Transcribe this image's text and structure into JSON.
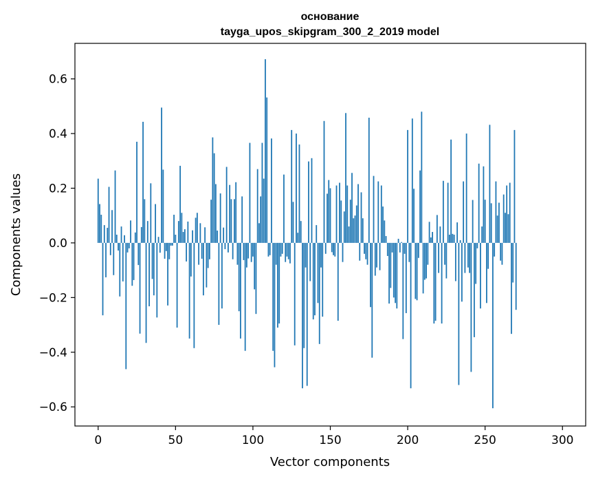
{
  "chart_data": {
    "type": "bar",
    "title": "основание",
    "subtitle": "tayga_upos_skipgram_300_2_2019 model",
    "xlabel": "Vector components",
    "ylabel": "Components values",
    "xlim": [
      -15,
      315
    ],
    "ylim": [
      -0.67,
      0.73
    ],
    "xticks": [
      0,
      50,
      100,
      150,
      200,
      250,
      300
    ],
    "xtick_labels": [
      "0",
      "50",
      "100",
      "150",
      "200",
      "250",
      "300"
    ],
    "yticks": [
      -0.6,
      -0.4,
      -0.2,
      0.0,
      0.2,
      0.4,
      0.6
    ],
    "ytick_labels": [
      "−0.6",
      "−0.4",
      "−0.2",
      "0.0",
      "0.2",
      "0.4",
      "0.6"
    ],
    "grid": false,
    "bar_color": "#1f77b4",
    "series": [
      {
        "values": [
          0.235,
          0.142,
          0.103,
          -0.265,
          0.065,
          -0.126,
          0.055,
          0.205,
          -0.045,
          0.12,
          -0.118,
          0.265,
          0.03,
          -0.028,
          -0.196,
          0.06,
          -0.141,
          0.028,
          -0.462,
          -0.035,
          -0.02,
          0.082,
          -0.157,
          -0.136,
          0.038,
          0.37,
          -0.081,
          -0.332,
          0.058,
          0.443,
          0.16,
          -0.366,
          0.08,
          -0.232,
          0.218,
          -0.132,
          -0.192,
          0.142,
          -0.273,
          0.022,
          -0.036,
          0.495,
          0.268,
          -0.058,
          -0.03,
          -0.229,
          -0.06,
          -0.01,
          -0.01,
          0.103,
          0.03,
          -0.31,
          0.08,
          0.282,
          0.11,
          0.04,
          0.05,
          -0.068,
          0.078,
          -0.35,
          -0.123,
          0.046,
          -0.385,
          0.092,
          0.11,
          -0.08,
          0.072,
          -0.058,
          -0.192,
          0.057,
          -0.163,
          -0.092,
          -0.06,
          0.158,
          0.386,
          0.328,
          0.215,
          0.045,
          -0.3,
          0.181,
          -0.24,
          0.056,
          -0.023,
          0.278,
          -0.035,
          0.212,
          0.16,
          -0.06,
          0.16,
          0.222,
          -0.08,
          -0.25,
          -0.35,
          0.17,
          -0.063,
          -0.395,
          -0.09,
          -0.057,
          0.366,
          -0.07,
          -0.05,
          -0.17,
          -0.26,
          0.27,
          0.072,
          0.17,
          0.366,
          0.235,
          0.672,
          0.532,
          -0.05,
          -0.045,
          0.382,
          -0.395,
          -0.455,
          -0.08,
          -0.31,
          -0.295,
          -0.05,
          -0.04,
          0.25,
          -0.07,
          -0.05,
          -0.06,
          -0.075,
          0.413,
          0.15,
          -0.375,
          0.4,
          0.037,
          0.36,
          0.08,
          -0.532,
          -0.385,
          -0.09,
          -0.523,
          0.298,
          -0.14,
          0.31,
          -0.28,
          -0.265,
          0.065,
          -0.22,
          -0.37,
          -0.09,
          -0.27,
          0.446,
          -0.04,
          0.18,
          0.23,
          0.2,
          -0.034,
          -0.045,
          -0.05,
          0.21,
          -0.285,
          0.22,
          0.155,
          -0.07,
          0.115,
          0.475,
          0.21,
          0.06,
          0.158,
          0.256,
          0.09,
          0.1,
          0.137,
          0.215,
          -0.065,
          0.185,
          0.09,
          -0.04,
          -0.06,
          -0.08,
          0.458,
          -0.235,
          -0.42,
          0.245,
          -0.12,
          -0.09,
          0.225,
          -0.1,
          0.21,
          0.133,
          0.082,
          0.025,
          -0.048,
          -0.222,
          -0.165,
          -0.035,
          -0.2,
          -0.22,
          -0.24,
          0.015,
          -0.035,
          0.003,
          -0.352,
          -0.04,
          -0.257,
          0.413,
          -0.07,
          -0.532,
          0.455,
          0.198,
          -0.205,
          -0.21,
          -0.055,
          0.265,
          0.48,
          -0.185,
          -0.135,
          -0.13,
          -0.08,
          0.077,
          0.02,
          0.04,
          -0.295,
          -0.285,
          0.102,
          -0.11,
          0.06,
          -0.295,
          0.227,
          -0.08,
          -0.13,
          0.22,
          0.03,
          0.378,
          0.033,
          0.03,
          -0.14,
          0.075,
          -0.52,
          0.01,
          -0.215,
          0.225,
          -0.11,
          0.4,
          -0.09,
          -0.11,
          -0.472,
          0.157,
          -0.345,
          -0.15,
          -0.02,
          0.29,
          -0.24,
          0.06,
          0.28,
          0.158,
          -0.22,
          -0.095,
          0.432,
          0.145,
          -0.605,
          -0.05,
          0.225,
          0.1,
          0.147,
          -0.065,
          -0.08,
          0.177,
          0.11,
          0.21,
          0.105,
          0.22,
          -0.333,
          -0.145,
          0.413,
          -0.245
        ]
      }
    ]
  }
}
